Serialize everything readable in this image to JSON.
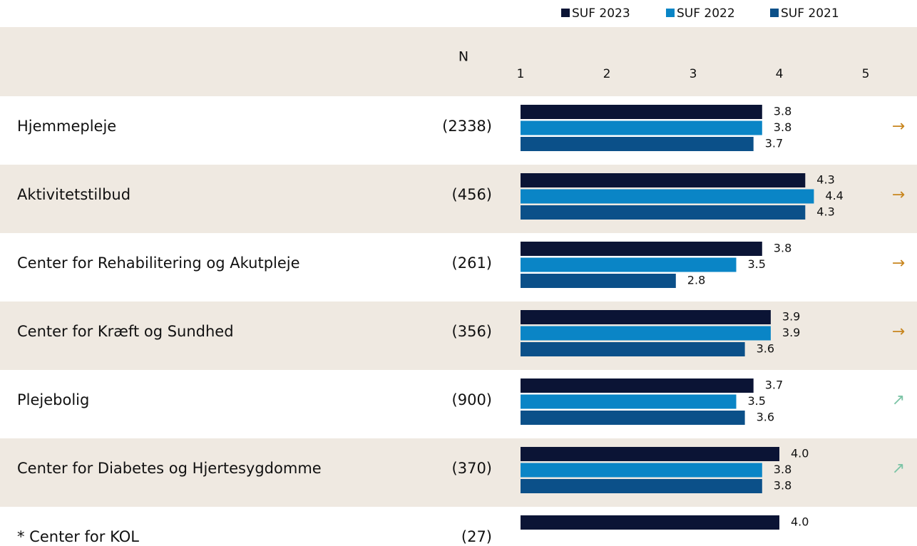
{
  "chart_data": {
    "type": "bar",
    "orientation": "horizontal",
    "n_header": "N",
    "categories": [
      "Hjemmepleje",
      "Aktivitetstilbud",
      "Center for Rehabilitering og Akutpleje",
      "Center for Kræft og Sundhed",
      "Plejebolig",
      "Center for Diabetes og Hjertesygdomme",
      "* Center for KOL"
    ],
    "n_labels": [
      "(2338)",
      "(456)",
      "(261)",
      "(356)",
      "(900)",
      "(370)",
      "(27)"
    ],
    "trend": [
      "→",
      "→",
      "→",
      "→",
      "↗",
      "↗",
      null
    ],
    "trend_colors": [
      "#c8861f",
      "#c8861f",
      "#c8861f",
      "#c8861f",
      "#7cc4a6",
      "#7cc4a6",
      null
    ],
    "series": [
      {
        "name": "SUF 2023",
        "color": "#0b1435",
        "values": [
          3.8,
          4.3,
          3.8,
          3.9,
          3.7,
          4.0,
          4.0
        ],
        "value_labels": [
          "3.8",
          "4.3",
          "3.8",
          "3.9",
          "3.7",
          "4.0",
          "4.0"
        ]
      },
      {
        "name": "SUF 2022",
        "color": "#0a85c6",
        "values": [
          3.8,
          4.4,
          3.5,
          3.9,
          3.5,
          3.8,
          null
        ],
        "value_labels": [
          "3.8",
          "4.4",
          "3.5",
          "3.9",
          "3.5",
          "3.8",
          null
        ]
      },
      {
        "name": "SUF 2021",
        "color": "#0b5089",
        "values": [
          3.7,
          4.3,
          2.8,
          3.6,
          3.6,
          3.8,
          null
        ],
        "value_labels": [
          "3.7",
          "4.3",
          "2.8",
          "3.6",
          "3.6",
          "3.8",
          null
        ]
      }
    ],
    "xlim": [
      1,
      5
    ],
    "xticks": [
      1,
      2,
      3,
      4,
      5
    ]
  }
}
